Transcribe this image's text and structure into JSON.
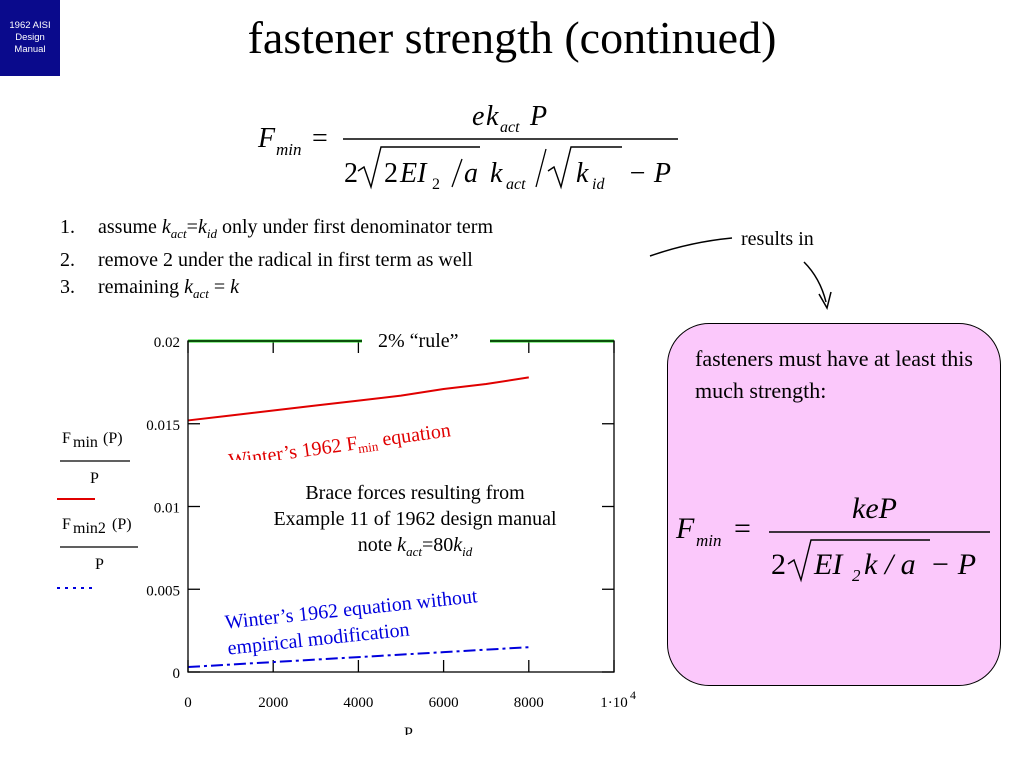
{
  "badge": {
    "lines": [
      "1962 AISI",
      "Design",
      "Manual"
    ]
  },
  "title": "fastener strength (continued)",
  "formula_main": {
    "lhs": "F",
    "lhs_sub": "min",
    "equals": "=",
    "numerator": [
      "e",
      "k",
      "act",
      "P"
    ],
    "den_2": "2",
    "den_2b": "2",
    "den_EI": "EI",
    "den_EI_sub": "2",
    "den_a": "a",
    "den_k": "k",
    "den_k_sub": "act",
    "den_k2": "k",
    "den_k2_sub": "id",
    "den_minusP": "− P"
  },
  "steps": [
    {
      "num": "1.",
      "pre": "assume ",
      "k1": "k",
      "s1": "act",
      "mid": "=",
      "k2": "k",
      "s2": "id",
      "post": " only under first denominator term"
    },
    {
      "num": "2.",
      "text": "remove 2 under the radical in first term as well"
    },
    {
      "num": "3.",
      "pre": "remaining ",
      "k1": "k",
      "s1": "act",
      "post": " = ",
      "k2": "k"
    }
  ],
  "results_in": "results in",
  "pink": {
    "text": "fasteners must have at least this much strength:",
    "formula": {
      "lhs": "F",
      "lhs_sub": "min",
      "equals": "=",
      "numerator": "keP",
      "den_2": "2",
      "den_EI": "EI",
      "den_EI_sub": "2",
      "den_rest": "k / a",
      "den_minusP": "− P"
    }
  },
  "legend": {
    "f1_num_a": "F",
    "f1_sub": "min",
    "f1_num_b": "(P)",
    "f1_den": "P",
    "f2_num_a": "F",
    "f2_sub": "min2",
    "f2_num_b": "(P)",
    "f2_den": "P"
  },
  "annotations": {
    "rule": "2% “rule”",
    "winter_red_a": "Winter’s 1962 F",
    "winter_red_sub": "min",
    "winter_red_b": " equation",
    "brace": [
      "Brace forces resulting from",
      "Example 11 of 1962 design manual"
    ],
    "note_pre": "note ",
    "note_k": "k",
    "note_s": "act",
    "note_mid": "=80",
    "note_k2": "k",
    "note_s2": "id",
    "winter_blue": [
      "Winter’s 1962 equation without",
      "empirical modification"
    ]
  },
  "colors": {
    "rule": "#22dd22",
    "red": "#e00000",
    "blue": "#0000dd",
    "badge": "#0a0a8c",
    "pink": "#fbc8fb"
  },
  "chart_data": {
    "type": "line",
    "xlabel": "P",
    "ylabel": "",
    "xlim": [
      0,
      10000
    ],
    "ylim": [
      0,
      0.02
    ],
    "x_tick_labels": [
      "0",
      "2000",
      "4000",
      "6000",
      "8000",
      "1·10"
    ],
    "x_tick_last_exp": "4",
    "y_tick_labels": [
      "0",
      "0.005",
      "0.01",
      "0.015",
      "0.02"
    ],
    "x_ticks": [
      0,
      2000,
      4000,
      6000,
      8000,
      10000
    ],
    "y_ticks": [
      0,
      0.005,
      0.01,
      0.015,
      0.02
    ],
    "series": [
      {
        "style": "solid",
        "color": "#22dd22",
        "x": [
          0,
          10000
        ],
        "y": [
          0.02,
          0.02
        ]
      },
      {
        "style": "solid",
        "color": "#e00000",
        "x": [
          0,
          1000,
          2000,
          3000,
          4000,
          5000,
          6000,
          7000,
          8000
        ],
        "y": [
          0.0152,
          0.0155,
          0.0158,
          0.0161,
          0.0164,
          0.0167,
          0.0171,
          0.0174,
          0.0178
        ]
      },
      {
        "style": "dashed",
        "color": "#0000dd",
        "x": [
          0,
          2000,
          4000,
          6000,
          8000
        ],
        "y": [
          0.0003,
          0.0006,
          0.0009,
          0.0012,
          0.0015
        ]
      }
    ]
  }
}
